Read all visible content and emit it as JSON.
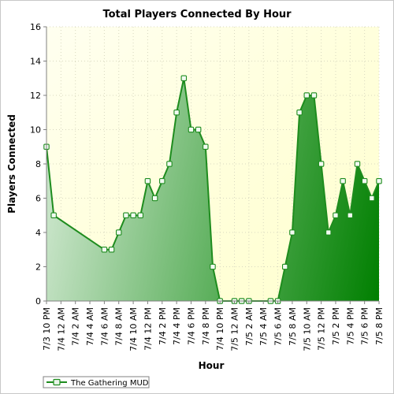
{
  "chart_data": {
    "type": "area",
    "title": "Total Players Connected By Hour",
    "xlabel": "Hour",
    "ylabel": "Players Connected",
    "ylim": [
      0,
      16
    ],
    "yticks": [
      0,
      2,
      4,
      6,
      8,
      10,
      12,
      14,
      16
    ],
    "grid": true,
    "legend_position": "bottom-left",
    "x_tick_labels": [
      "7/3 10 PM",
      "7/4 12 AM",
      "7/4 2 AM",
      "7/4 4 AM",
      "7/4 6 AM",
      "7/4 8 AM",
      "7/4 10 AM",
      "7/4 12 PM",
      "7/4 2 PM",
      "7/4 4 PM",
      "7/4 6 PM",
      "7/4 8 PM",
      "7/4 10 PM",
      "7/5 12 AM",
      "7/5 2 AM",
      "7/5 4 AM",
      "7/5 6 AM",
      "7/5 8 AM",
      "7/5 10 AM",
      "7/5 12 PM",
      "7/5 2 PM",
      "7/5 4 PM",
      "7/5 6 PM",
      "7/5 8 PM"
    ],
    "series": [
      {
        "name": "The Gathering MUD",
        "color": "#1e8c1e",
        "points": [
          {
            "x": "7/3 10 PM",
            "y": 9
          },
          {
            "x": "7/3 11 PM",
            "y": 5
          },
          {
            "x": "7/4 6 AM",
            "y": 3
          },
          {
            "x": "7/4 7 AM",
            "y": 3
          },
          {
            "x": "7/4 8 AM",
            "y": 4
          },
          {
            "x": "7/4 9 AM",
            "y": 5
          },
          {
            "x": "7/4 10 AM",
            "y": 5
          },
          {
            "x": "7/4 11 AM",
            "y": 5
          },
          {
            "x": "7/4 12 PM",
            "y": 7
          },
          {
            "x": "7/4 1 PM",
            "y": 6
          },
          {
            "x": "7/4 2 PM",
            "y": 7
          },
          {
            "x": "7/4 3 PM",
            "y": 8
          },
          {
            "x": "7/4 4 PM",
            "y": 11
          },
          {
            "x": "7/4 5 PM",
            "y": 13
          },
          {
            "x": "7/4 6 PM",
            "y": 10
          },
          {
            "x": "7/4 7 PM",
            "y": 10
          },
          {
            "x": "7/4 8 PM",
            "y": 9
          },
          {
            "x": "7/4 9 PM",
            "y": 2
          },
          {
            "x": "7/4 10 PM",
            "y": 0
          },
          {
            "x": "7/5 12 AM",
            "y": 0
          },
          {
            "x": "7/5 1 AM",
            "y": 0
          },
          {
            "x": "7/5 2 AM",
            "y": 0
          },
          {
            "x": "7/5 5 AM",
            "y": 0
          },
          {
            "x": "7/5 6 AM",
            "y": 0
          },
          {
            "x": "7/5 7 AM",
            "y": 2
          },
          {
            "x": "7/5 8 AM",
            "y": 4
          },
          {
            "x": "7/5 9 AM",
            "y": 11
          },
          {
            "x": "7/5 10 AM",
            "y": 12
          },
          {
            "x": "7/5 11 AM",
            "y": 12
          },
          {
            "x": "7/5 12 PM",
            "y": 8
          },
          {
            "x": "7/5 1 PM",
            "y": 4
          },
          {
            "x": "7/5 2 PM",
            "y": 5
          },
          {
            "x": "7/5 3 PM",
            "y": 7
          },
          {
            "x": "7/5 4 PM",
            "y": 5
          },
          {
            "x": "7/5 5 PM",
            "y": 8
          },
          {
            "x": "7/5 6 PM",
            "y": 7
          },
          {
            "x": "7/5 7 PM",
            "y": 6
          },
          {
            "x": "7/5 8 PM",
            "y": 7
          }
        ]
      }
    ]
  }
}
